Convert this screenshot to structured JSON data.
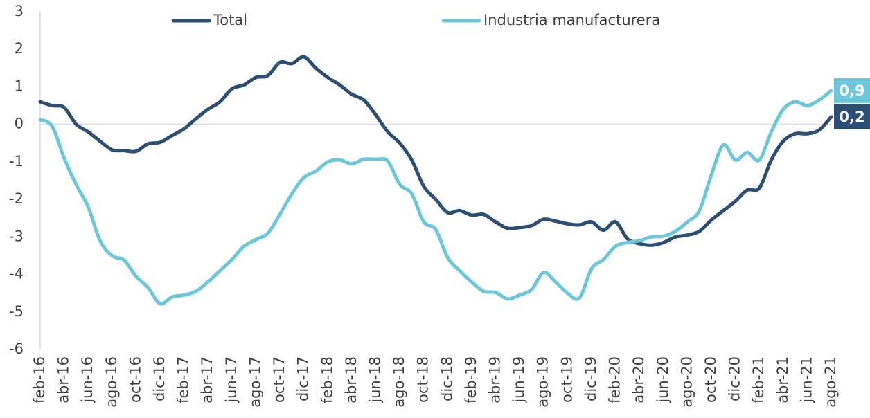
{
  "chart_data": {
    "type": "line",
    "categories": [
      "feb-16",
      null,
      "abr-16",
      null,
      "jun-16",
      null,
      "ago-16",
      null,
      "oct-16",
      null,
      "dic-16",
      null,
      "feb-17",
      null,
      "abr-17",
      null,
      "jun-17",
      null,
      "ago-17",
      null,
      "oct-17",
      null,
      "dic-17",
      null,
      "feb-18",
      null,
      "abr-18",
      null,
      "jun-18",
      null,
      "ago-18",
      null,
      "oct-18",
      null,
      "dic-18",
      null,
      "feb-19",
      null,
      "abr-19",
      null,
      "jun-19",
      null,
      "ago-19",
      null,
      "oct-19",
      null,
      "dic-19",
      null,
      "feb-20",
      null,
      "abr-20",
      null,
      "jun-20",
      null,
      "ago-20",
      null,
      "oct-20",
      null,
      "dic-20",
      null,
      "feb-21",
      null,
      "abr-21",
      null,
      "jun-21",
      null,
      "ago-21"
    ],
    "series": [
      {
        "name": "Total",
        "color": "#2c4f73",
        "values": [
          0.6,
          0.5,
          0.45,
          0.0,
          -0.2,
          -0.45,
          -0.68,
          -0.7,
          -0.72,
          -0.52,
          -0.48,
          -0.3,
          -0.12,
          0.15,
          0.4,
          0.6,
          0.95,
          1.05,
          1.25,
          1.3,
          1.65,
          1.62,
          1.8,
          1.5,
          1.25,
          1.05,
          0.8,
          0.65,
          0.25,
          -0.2,
          -0.5,
          -0.95,
          -1.65,
          -2.0,
          -2.35,
          -2.3,
          -2.42,
          -2.4,
          -2.6,
          -2.77,
          -2.75,
          -2.7,
          -2.53,
          -2.58,
          -2.65,
          -2.68,
          -2.6,
          -2.82,
          -2.6,
          -3.05,
          -3.18,
          -3.22,
          -3.15,
          -3.0,
          -2.95,
          -2.85,
          -2.55,
          -2.3,
          -2.05,
          -1.75,
          -1.7,
          -0.95,
          -0.45,
          -0.25,
          -0.25,
          -0.15,
          0.2
        ],
        "value_labels": [
          null,
          null,
          null,
          null,
          null,
          null,
          null,
          null,
          null,
          null,
          null,
          null,
          null,
          null,
          null,
          null,
          null,
          null,
          null,
          null,
          null,
          null,
          null,
          null,
          null,
          null,
          null,
          null,
          null,
          null,
          null,
          null,
          null,
          null,
          null,
          null,
          null,
          null,
          null,
          null,
          null,
          null,
          null,
          null,
          null,
          null,
          null,
          null,
          null,
          null,
          null,
          null,
          null,
          null,
          null,
          null,
          null,
          null,
          null,
          null,
          null,
          null,
          null,
          null,
          null,
          null,
          "0,2"
        ]
      },
      {
        "name": "Industria manufacturera",
        "color": "#6cc7da",
        "values": [
          0.12,
          -0.05,
          -0.9,
          -1.6,
          -2.2,
          -3.1,
          -3.5,
          -3.62,
          -4.05,
          -4.35,
          -4.78,
          -4.6,
          -4.55,
          -4.45,
          -4.2,
          -3.9,
          -3.6,
          -3.25,
          -3.07,
          -2.9,
          -2.4,
          -1.85,
          -1.42,
          -1.25,
          -1.0,
          -0.95,
          -1.05,
          -0.93,
          -0.93,
          -0.98,
          -1.6,
          -1.85,
          -2.6,
          -2.8,
          -3.55,
          -3.9,
          -4.2,
          -4.45,
          -4.48,
          -4.65,
          -4.55,
          -4.4,
          -3.95,
          -4.2,
          -4.5,
          -4.62,
          -3.85,
          -3.6,
          -3.25,
          -3.15,
          -3.1,
          -3.0,
          -2.98,
          -2.85,
          -2.6,
          -2.3,
          -1.35,
          -0.55,
          -0.95,
          -0.75,
          -0.95,
          -0.2,
          0.4,
          0.6,
          0.5,
          0.65,
          0.9
        ],
        "value_labels": [
          null,
          null,
          null,
          null,
          null,
          null,
          null,
          null,
          null,
          null,
          null,
          null,
          null,
          null,
          null,
          null,
          null,
          null,
          null,
          null,
          null,
          null,
          null,
          null,
          null,
          null,
          null,
          null,
          null,
          null,
          null,
          null,
          null,
          null,
          null,
          null,
          null,
          null,
          null,
          null,
          null,
          null,
          null,
          null,
          null,
          null,
          null,
          null,
          null,
          null,
          null,
          null,
          null,
          null,
          null,
          null,
          null,
          null,
          null,
          null,
          null,
          null,
          null,
          null,
          null,
          null,
          "0,9"
        ]
      }
    ],
    "ylim": [
      -6,
      3
    ],
    "yticks": [
      -6,
      -5,
      -4,
      -3,
      -2,
      -1,
      0,
      1,
      2,
      3
    ]
  }
}
